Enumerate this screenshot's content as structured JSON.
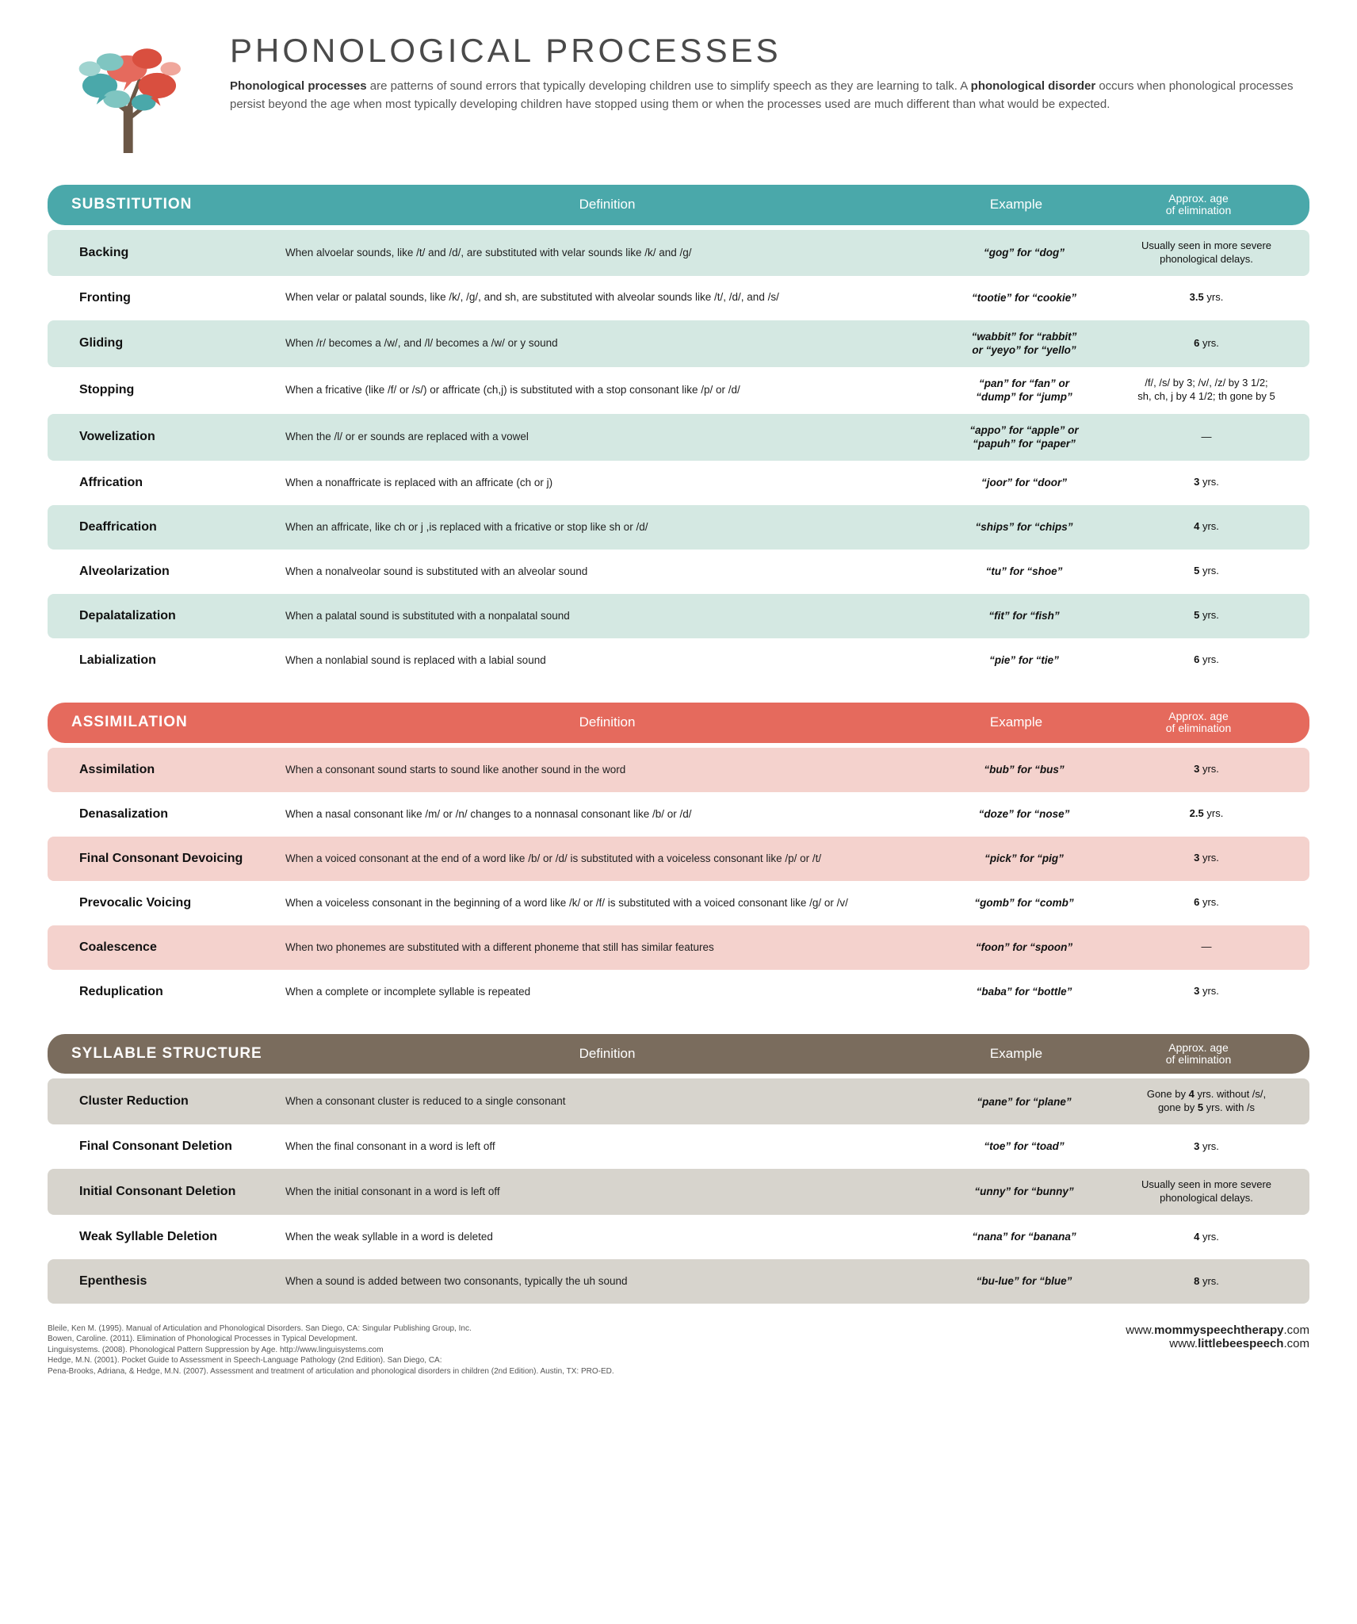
{
  "title": "PHONOLOGICAL PROCESSES",
  "intro_html": "<b>Phonological processes</b> are patterns of sound errors that typically developing children use to simplify speech as they are learning to talk. A <b>phonological disorder</b> occurs when phonological processes persist beyond the age when most typically developing children have stopped using them or when the processes used are much different than what would be expected.",
  "columns": {
    "definition": "Definition",
    "example": "Example",
    "age_line1": "Approx. age",
    "age_line2": "of elimination"
  },
  "colors": {
    "substitution_header": "#4aa8aa",
    "substitution_row": "#d4e8e2",
    "assimilation_header": "#e56a5d",
    "assimilation_row": "#f4d2cd",
    "syllable_header": "#7a6c5d",
    "syllable_row": "#d7d4cd"
  },
  "sections": [
    {
      "id": "substitution",
      "label": "SUBSTITUTION",
      "header_color_key": "substitution_header",
      "row_color_key": "substitution_row",
      "rows": [
        {
          "name": "Backing",
          "def": "When alvoelar sounds, like /t/ and /d/,  are substituted with velar sounds like /k/ and /g/",
          "ex": "“gog” for “dog”",
          "age": "Usually seen in more severe phonological delays."
        },
        {
          "name": "Fronting",
          "def": "When velar or palatal sounds, like /k/, /g/, and sh,  are substituted with alveolar sounds like /t/, /d/, and /s/",
          "ex": "“tootie” for “cookie”",
          "age": "<b>3.5</b> yrs."
        },
        {
          "name": "Gliding",
          "def": "When /r/ becomes a /w/, and /l/ becomes a /w/ or y sound",
          "ex": "“wabbit” for “rabbit”<br>or “yeyo” for “yello”",
          "age": "<b>6</b> yrs."
        },
        {
          "name": "Stopping",
          "def": "When a fricative (like /f/ or /s/) or affricate (ch,j) is substituted with a stop consonant like /p/ or /d/",
          "ex": "“pan” for “fan” or<br>“dump” for “jump”",
          "age": "/f/, /s/ by 3; /v/, /z/ by 3 1/2;<br>sh, ch, j by 4 1/2; th gone by 5"
        },
        {
          "name": "Vowelization",
          "def": "When the /l/ or er sounds are replaced with a vowel",
          "ex": "“appo” for “apple” or<br>“papuh” for “paper”",
          "age": "—"
        },
        {
          "name": "Affrication",
          "def": "When a nonaffricate  is replaced with an affricate (ch or j)",
          "ex": "“joor” for “door”",
          "age": "<b>3</b> yrs."
        },
        {
          "name": "Deaffrication",
          "def": "When an affricate, like ch or j ,is replaced with a fricative or stop like sh or /d/",
          "ex": "“ships” for “chips”",
          "age": "<b>4</b> yrs."
        },
        {
          "name": "Alveolarization",
          "def": "When a nonalveolar sound is substituted with an alveolar sound",
          "ex": "“tu” for “shoe”",
          "age": "<b>5</b> yrs."
        },
        {
          "name": "Depalatalization",
          "def": "When a palatal sound is substituted with a nonpalatal sound",
          "ex": "“fit” for “fish”",
          "age": "<b>5</b> yrs."
        },
        {
          "name": "Labialization",
          "def": "When a nonlabial sound is replaced with a labial sound",
          "ex": "“pie” for “tie”",
          "age": "<b>6</b> yrs."
        }
      ]
    },
    {
      "id": "assimilation",
      "label": "ASSIMILATION",
      "header_color_key": "assimilation_header",
      "row_color_key": "assimilation_row",
      "rows": [
        {
          "name": "Assimilation",
          "def": "When a consonant sound starts to sound like another sound in the word",
          "ex": "“bub” for “bus”",
          "age": "<b>3</b> yrs."
        },
        {
          "name": "Denasalization",
          "def": "When a nasal consonant like /m/ or /n/  changes to a nonnasal consonant like /b/ or /d/",
          "ex": "“doze” for “nose”",
          "age": "<b>2.5</b> yrs."
        },
        {
          "name": "Final Consonant Devoicing",
          "def": "When a voiced consonant at the end of a word  like /b/ or /d/ is substituted with a voiceless consonant like /p/ or /t/",
          "ex": "“pick” for “pig”",
          "age": "<b>3</b> yrs."
        },
        {
          "name": "Prevocalic Voicing",
          "def": "When a voiceless consonant in the beginning of a word like /k/ or /f/ is substituted with a voiced consonant like /g/ or /v/",
          "ex": "“gomb” for “comb”",
          "age": "<b>6</b> yrs."
        },
        {
          "name": "Coalescence",
          "def": "When two phonemes are substituted with a different phoneme that still has similar features",
          "ex": "“foon” for “spoon”",
          "age": "—"
        },
        {
          "name": "Reduplication",
          "def": "When a complete or incomplete syllable is repeated",
          "ex": "“baba” for “bottle”",
          "age": "<b>3</b> yrs."
        }
      ]
    },
    {
      "id": "syllable",
      "label": "SYLLABLE STRUCTURE",
      "header_color_key": "syllable_header",
      "row_color_key": "syllable_row",
      "rows": [
        {
          "name": "Cluster Reduction",
          "def": "When a consonant cluster is reduced to a single consonant",
          "ex": "“pane” for “plane”",
          "age": "Gone by <b>4</b> yrs. without /s/,<br>gone by <b>5</b> yrs. with /s"
        },
        {
          "name": "Final Consonant Deletion",
          "def": "When the final consonant in a word is left off",
          "ex": "“toe” for “toad”",
          "age": "<b>3</b> yrs."
        },
        {
          "name": "Initial Consonant Deletion",
          "def": "When the initial consonant in a word is left off",
          "ex": "“unny” for “bunny”",
          "age": "Usually seen in more severe phonological delays."
        },
        {
          "name": "Weak Syllable Deletion",
          "def": "When the weak syllable in a word is deleted",
          "ex": "“nana” for “banana”",
          "age": "<b>4</b> yrs."
        },
        {
          "name": "Epenthesis",
          "def": "When a sound is added between two consonants, typically the uh sound",
          "ex": "“bu-lue” for “blue”",
          "age": "<b>8</b> yrs."
        }
      ]
    }
  ],
  "references": [
    "Bleile, Ken M. (1995). Manual of Articulation and Phonological Disorders. San Diego, CA: Singular Publishing Group, Inc.",
    "Bowen, Caroline. (2011). Elimination of Phonological Processes in Typical Development.",
    "Linguisystems. (2008). Phonological Pattern Suppression by Age. http://www.linguisystems.com",
    "Hedge, M.N. (2001). Pocket Guide to Assessment in Speech-Language Pathology (2nd Edition). San Diego, CA:",
    "Pena-Brooks, Adriana, & Hedge, M.N. (2007). Assessment and treatment of articulation and phonological disorders in children (2nd Edition). Austin, TX: PRO-ED."
  ],
  "links": {
    "l1_pre": "www.",
    "l1_bold": "mommyspeechtherapy",
    "l1_post": ".com",
    "l2_pre": "www.",
    "l2_bold": "littlebeespeech",
    "l2_post": ".com"
  }
}
